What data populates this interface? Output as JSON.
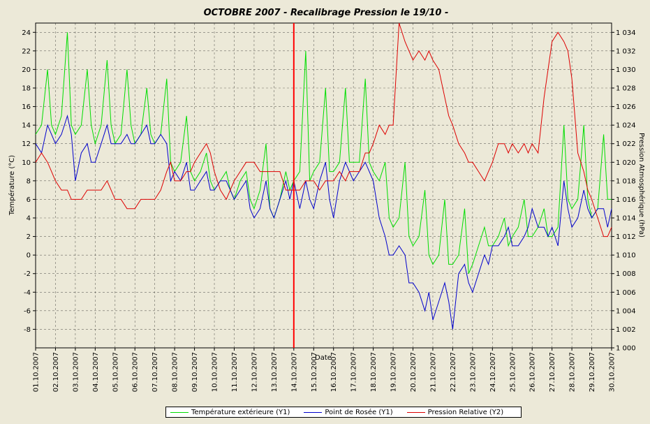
{
  "chart_data": {
    "type": "line",
    "title": "OCTOBRE  2007  -  Recalibrage Pression le 19/10  -",
    "xlabel": "Date",
    "ylabel": "Température (°C)",
    "y2label": "Pression Atmosphérique (hPa)",
    "ylim": [
      -10,
      25
    ],
    "y2lim": [
      1000,
      1035
    ],
    "xlim": [
      1,
      30
    ],
    "x_ticks": [
      "01.10.2007",
      "02.10.2007",
      "03.10.2007",
      "04.10.2007",
      "05.10.2007",
      "06.10.2007",
      "07.10.2007",
      "08.10.2007",
      "09.10.2007",
      "10.10.2007",
      "11.10.2007",
      "12.10.2007",
      "13.10.2007",
      "14.10.2007",
      "15.10.2007",
      "16.10.2007",
      "17.10.2007",
      "18.10.2007",
      "19.10.2007",
      "20.10.2007",
      "21.10.2007",
      "22.10.2007",
      "23.10.2007",
      "24.10.2007",
      "25.10.2007",
      "26.10.2007",
      "27.10.2007",
      "28.10.2007",
      "29.10.2007",
      "30.10.2007"
    ],
    "y_ticks": [
      "24",
      "22",
      "20",
      "18",
      "16",
      "14",
      "12",
      "10",
      "8",
      "6",
      "4",
      "2",
      "0",
      "-2",
      "-4",
      "-6",
      "-8"
    ],
    "y_tick_values": [
      24,
      22,
      20,
      18,
      16,
      14,
      12,
      10,
      8,
      6,
      4,
      2,
      0,
      -2,
      -4,
      -6,
      -8
    ],
    "y2_ticks": [
      "1 034",
      "1 032",
      "1 030",
      "1 028",
      "1 026",
      "1 024",
      "1 022",
      "1 020",
      "1 018",
      "1 016",
      "1 014",
      "1 012",
      "1 010",
      "1 008",
      "1 006",
      "1 004",
      "1 002",
      "1 000"
    ],
    "y2_tick_values": [
      1034,
      1032,
      1030,
      1028,
      1026,
      1024,
      1022,
      1020,
      1018,
      1016,
      1014,
      1012,
      1010,
      1008,
      1006,
      1004,
      1002,
      1000
    ],
    "grid": true,
    "marker_line": {
      "x": 14.0,
      "color": "#ff0000"
    },
    "legend_position": "bottom",
    "series": [
      {
        "name": "Température extérieure (Y1)",
        "axis": "y1",
        "color": "#00dd00",
        "x": [
          1.0,
          1.3,
          1.6,
          1.8,
          2.0,
          2.3,
          2.6,
          2.8,
          3.0,
          3.3,
          3.6,
          3.8,
          4.0,
          4.3,
          4.6,
          4.8,
          5.0,
          5.3,
          5.6,
          5.8,
          6.0,
          6.3,
          6.6,
          6.8,
          7.0,
          7.3,
          7.6,
          7.8,
          8.0,
          8.3,
          8.6,
          8.8,
          9.0,
          9.3,
          9.6,
          9.8,
          10.0,
          10.3,
          10.6,
          10.8,
          11.0,
          11.3,
          11.6,
          11.8,
          12.0,
          12.3,
          12.6,
          12.8,
          13.0,
          13.3,
          13.6,
          13.8,
          14.0,
          14.3,
          14.6,
          14.8,
          15.0,
          15.3,
          15.6,
          15.8,
          16.0,
          16.3,
          16.6,
          16.8,
          17.0,
          17.3,
          17.6,
          17.8,
          18.0,
          18.3,
          18.6,
          18.8,
          19.0,
          19.3,
          19.6,
          19.8,
          20.0,
          20.3,
          20.6,
          20.8,
          21.0,
          21.3,
          21.6,
          21.8,
          22.0,
          22.3,
          22.6,
          22.8,
          23.0,
          23.3,
          23.6,
          23.8,
          24.0,
          24.3,
          24.6,
          24.8,
          25.0,
          25.3,
          25.6,
          25.8,
          26.0,
          26.3,
          26.6,
          26.8,
          27.0,
          27.3,
          27.6,
          27.8,
          28.0,
          28.3,
          28.6,
          28.8,
          29.0,
          29.3,
          29.6,
          29.8,
          30.0
        ],
        "y": [
          13,
          14,
          20,
          14,
          13,
          15,
          24,
          14,
          13,
          14,
          20,
          14,
          12,
          14,
          21,
          14,
          12,
          13,
          20,
          14,
          12,
          13,
          18,
          13,
          12,
          13,
          19,
          10,
          9,
          10,
          15,
          9,
          8,
          9,
          11,
          8,
          7,
          8,
          9,
          7,
          6,
          8,
          9,
          6,
          5,
          7,
          12,
          5,
          4,
          6,
          9,
          7,
          8,
          9,
          22,
          8,
          9,
          10,
          18,
          9,
          9,
          10,
          18,
          10,
          10,
          10,
          19,
          10,
          9,
          8,
          10,
          4,
          3,
          4,
          10,
          2,
          1,
          2,
          7,
          0,
          -1,
          0,
          6,
          -1,
          -1,
          0,
          5,
          -2,
          -1,
          1,
          3,
          1,
          1,
          2,
          4,
          1,
          2,
          3,
          6,
          2,
          2,
          3,
          5,
          2,
          2,
          3,
          14,
          6,
          5,
          6,
          14,
          6,
          4,
          5,
          13,
          6,
          6
        ]
      },
      {
        "name": "Point de Rosée (Y1)",
        "axis": "y1",
        "color": "#0000cc",
        "x": [
          1.0,
          1.3,
          1.6,
          1.8,
          2.0,
          2.3,
          2.6,
          2.8,
          3.0,
          3.3,
          3.6,
          3.8,
          4.0,
          4.3,
          4.6,
          4.8,
          5.0,
          5.3,
          5.6,
          5.8,
          6.0,
          6.3,
          6.6,
          6.8,
          7.0,
          7.3,
          7.6,
          7.8,
          8.0,
          8.3,
          8.6,
          8.8,
          9.0,
          9.3,
          9.6,
          9.8,
          10.0,
          10.3,
          10.6,
          10.8,
          11.0,
          11.3,
          11.6,
          11.8,
          12.0,
          12.3,
          12.6,
          12.8,
          13.0,
          13.3,
          13.6,
          13.8,
          14.0,
          14.3,
          14.6,
          14.8,
          15.0,
          15.3,
          15.6,
          15.8,
          16.0,
          16.3,
          16.6,
          16.8,
          17.0,
          17.3,
          17.6,
          17.8,
          18.0,
          18.3,
          18.6,
          18.8,
          19.0,
          19.3,
          19.6,
          19.8,
          20.0,
          20.3,
          20.6,
          20.8,
          21.0,
          21.3,
          21.6,
          21.8,
          22.0,
          22.3,
          22.6,
          22.8,
          23.0,
          23.3,
          23.6,
          23.8,
          24.0,
          24.3,
          24.6,
          24.8,
          25.0,
          25.3,
          25.6,
          25.8,
          26.0,
          26.3,
          26.6,
          26.8,
          27.0,
          27.3,
          27.6,
          27.8,
          28.0,
          28.3,
          28.6,
          28.8,
          29.0,
          29.3,
          29.6,
          29.8,
          30.0
        ],
        "y": [
          12,
          11,
          14,
          13,
          12,
          13,
          15,
          13,
          8,
          11,
          12,
          10,
          10,
          12,
          14,
          12,
          12,
          12,
          13,
          12,
          12,
          13,
          14,
          12,
          12,
          13,
          12,
          8,
          9,
          8,
          10,
          7,
          7,
          8,
          9,
          7,
          7,
          8,
          8,
          7,
          6,
          7,
          8,
          5,
          4,
          5,
          8,
          5,
          4,
          6,
          8,
          6,
          8,
          5,
          8,
          6,
          5,
          8,
          10,
          6,
          4,
          8,
          10,
          9,
          8,
          9,
          10,
          9,
          8,
          4,
          2,
          0,
          0,
          1,
          0,
          -3,
          -3,
          -4,
          -6,
          -4,
          -7,
          -5,
          -3,
          -5,
          -8,
          -2,
          -1,
          -3,
          -4,
          -2,
          0,
          -1,
          1,
          1,
          2,
          3,
          1,
          1,
          2,
          3,
          5,
          3,
          3,
          2,
          3,
          1,
          8,
          5,
          3,
          4,
          7,
          5,
          4,
          5,
          5,
          3,
          5
        ]
      },
      {
        "name": "Pression Relative (Y2)",
        "axis": "y2",
        "color": "#dd0000",
        "x": [
          1.0,
          1.3,
          1.6,
          1.8,
          2.0,
          2.3,
          2.6,
          2.8,
          3.0,
          3.3,
          3.6,
          3.8,
          4.0,
          4.3,
          4.6,
          4.8,
          5.0,
          5.3,
          5.6,
          5.8,
          6.0,
          6.3,
          6.6,
          6.8,
          7.0,
          7.3,
          7.6,
          7.8,
          8.0,
          8.3,
          8.6,
          8.8,
          9.0,
          9.3,
          9.6,
          9.8,
          10.0,
          10.3,
          10.6,
          10.8,
          11.0,
          11.3,
          11.6,
          11.8,
          12.0,
          12.3,
          12.6,
          12.8,
          13.0,
          13.3,
          13.6,
          13.8,
          14.0,
          14.3,
          14.6,
          14.8,
          15.0,
          15.3,
          15.6,
          15.8,
          16.0,
          16.3,
          16.6,
          16.8,
          17.0,
          17.3,
          17.6,
          17.8,
          18.0,
          18.3,
          18.6,
          18.8,
          19.0,
          19.3,
          19.6,
          19.8,
          20.0,
          20.3,
          20.6,
          20.8,
          21.0,
          21.3,
          21.6,
          21.8,
          22.0,
          22.3,
          22.6,
          22.8,
          23.0,
          23.3,
          23.6,
          23.8,
          24.0,
          24.3,
          24.6,
          24.8,
          25.0,
          25.3,
          25.6,
          25.8,
          26.0,
          26.3,
          26.6,
          26.8,
          27.0,
          27.3,
          27.6,
          27.8,
          28.0,
          28.3,
          28.6,
          28.8,
          29.0,
          29.3,
          29.6,
          29.8,
          30.0
        ],
        "y": [
          1020,
          1021,
          1020,
          1019,
          1018,
          1017,
          1017,
          1016,
          1016,
          1016,
          1017,
          1017,
          1017,
          1017,
          1018,
          1017,
          1016,
          1016,
          1015,
          1015,
          1015,
          1016,
          1016,
          1016,
          1016,
          1017,
          1019,
          1020,
          1018,
          1018,
          1019,
          1019,
          1020,
          1021,
          1022,
          1021,
          1019,
          1017,
          1016,
          1017,
          1018,
          1019,
          1020,
          1020,
          1020,
          1019,
          1019,
          1019,
          1019,
          1019,
          1017,
          1017,
          1017,
          1017,
          1018,
          1018,
          1018,
          1017,
          1018,
          1018,
          1018,
          1019,
          1018,
          1019,
          1019,
          1019,
          1021,
          1021,
          1022,
          1024,
          1023,
          1024,
          1024,
          1035,
          1033,
          1032,
          1031,
          1032,
          1031,
          1032,
          1031,
          1030,
          1027,
          1025,
          1024,
          1022,
          1021,
          1020,
          1020,
          1019,
          1018,
          1019,
          1020,
          1022,
          1022,
          1021,
          1022,
          1021,
          1022,
          1021,
          1022,
          1021,
          1027,
          1030,
          1033,
          1034,
          1033,
          1032,
          1029,
          1021,
          1019,
          1017,
          1016,
          1014,
          1012,
          1012,
          1013
        ]
      }
    ]
  }
}
